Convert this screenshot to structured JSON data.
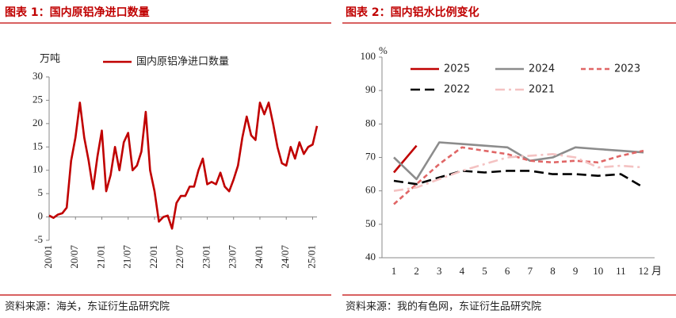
{
  "chart_data": [
    {
      "type": "line",
      "title": "图表 1：国内原铝净进口数量",
      "y_unit": "万吨",
      "source": "资料来源：海关，东证衍生品研究院",
      "categories": [
        "20/01",
        null,
        null,
        null,
        null,
        null,
        "20/07",
        null,
        null,
        null,
        null,
        null,
        "21/01",
        null,
        null,
        null,
        null,
        null,
        "21/07",
        null,
        null,
        null,
        null,
        null,
        "22/01",
        null,
        null,
        null,
        null,
        null,
        "22/07",
        null,
        null,
        null,
        null,
        null,
        "23/01",
        null,
        null,
        null,
        null,
        null,
        "23/07",
        null,
        null,
        null,
        null,
        null,
        "24/01",
        null,
        null,
        null,
        null,
        null,
        "24/07",
        null,
        null,
        null,
        null,
        null,
        "25/01",
        null
      ],
      "series": [
        {
          "name": "国内原铝净进口数量",
          "color": "#c00000",
          "style": "solid",
          "values": [
            0.3,
            -0.2,
            0.5,
            0.8,
            2,
            12,
            17,
            24.5,
            17,
            12,
            6,
            13,
            18.5,
            5.5,
            9,
            15,
            10,
            16,
            18,
            10,
            11,
            14,
            22.5,
            10,
            5.5,
            -1,
            0,
            0.3,
            -2.5,
            3,
            4.5,
            4.5,
            6.5,
            6.5,
            10,
            12.5,
            7,
            7.5,
            7,
            9.5,
            6.5,
            5.5,
            8,
            11,
            17,
            21.5,
            17.5,
            16.5,
            24.5,
            22,
            24.5,
            20,
            15,
            11.5,
            11,
            15,
            12.5,
            16,
            13.5,
            15,
            15.5,
            19.5
          ]
        }
      ],
      "ylim": [
        -5,
        30
      ],
      "yticks": [
        -5,
        0,
        5,
        10,
        15,
        20,
        25,
        30
      ]
    },
    {
      "type": "line",
      "title": "图表 2：国内铝水比例变化",
      "y_unit": "%",
      "x_unit": "月",
      "source": "资料来源：我的有色网，东证衍生品研究院",
      "categories": [
        "1",
        "2",
        "3",
        "4",
        "5",
        "6",
        "7",
        "8",
        "9",
        "10",
        "11",
        "12"
      ],
      "series": [
        {
          "name": "2025",
          "color": "#c00000",
          "style": "solid",
          "values": [
            65.5,
            73.5,
            null,
            null,
            null,
            null,
            null,
            null,
            null,
            null,
            null,
            null
          ]
        },
        {
          "name": "2024",
          "color": "#8c8c8c",
          "style": "solid",
          "values": [
            70,
            63.5,
            74.5,
            74,
            73.5,
            73,
            69,
            70,
            73,
            72.5,
            72,
            71.5
          ]
        },
        {
          "name": "2023",
          "color": "#e06666",
          "style": "dashed",
          "values": [
            56,
            62,
            68,
            73,
            72,
            71,
            69,
            68.5,
            69,
            68.5,
            70.5,
            72
          ]
        },
        {
          "name": "2022",
          "color": "#000000",
          "style": "long-dash",
          "values": [
            63,
            62,
            64,
            66,
            65.5,
            66,
            66,
            65,
            65,
            64.5,
            65,
            61
          ]
        },
        {
          "name": "2021",
          "color": "#f4c2c2",
          "style": "dash-dot",
          "values": [
            60,
            61,
            63.5,
            66,
            68,
            70,
            70.5,
            71,
            70,
            67,
            67.5,
            67
          ]
        }
      ],
      "ylim": [
        40,
        100
      ],
      "yticks": [
        40,
        50,
        60,
        70,
        80,
        90,
        100
      ]
    }
  ]
}
